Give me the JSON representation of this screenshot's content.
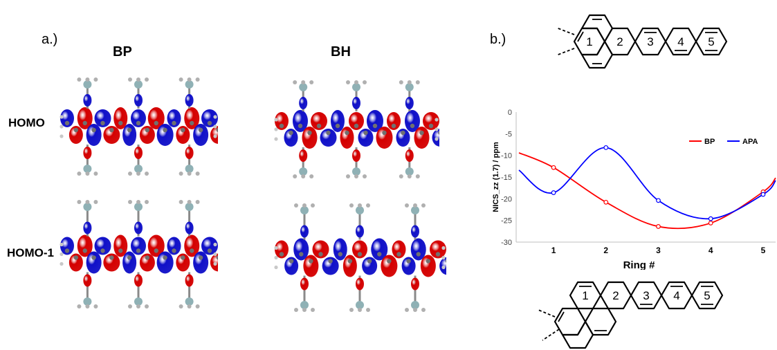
{
  "panel_a": {
    "label": "a.)",
    "columns": [
      "BP",
      "BH"
    ],
    "rows": [
      "HOMO",
      "HOMO-1"
    ]
  },
  "panel_b": {
    "label": "b.)",
    "top_structure_rings": [
      "1",
      "2",
      "3",
      "4",
      "5"
    ],
    "bottom_structure_rings": [
      "1",
      "2",
      "3",
      "4",
      "5"
    ]
  },
  "colors": {
    "orbital_positive": "#d40000",
    "orbital_negative": "#1010c8",
    "bp_series": "#ff0000",
    "apa_series": "#0000ff"
  },
  "chart_data": {
    "type": "line",
    "xlabel": "Ring #",
    "ylabel": "NICS_zz (1.7) / ppm",
    "categories": [
      "1",
      "2",
      "3",
      "4",
      "5"
    ],
    "ylim": [
      -30,
      0
    ],
    "yticks": [
      "0",
      "-5",
      "-10",
      "-15",
      "-20",
      "-25",
      "-30"
    ],
    "legend_position": "top-right",
    "smooth": true,
    "series": [
      {
        "name": "BP",
        "color": "#ff0000",
        "values": [
          -12.8,
          -20.8,
          -26.4,
          -25.6,
          -18.4
        ],
        "start": -9.4,
        "end": -15.2
      },
      {
        "name": "APA",
        "color": "#0000ff",
        "values": [
          -18.6,
          -8.2,
          -20.4,
          -24.6,
          -19.0
        ],
        "start": -13.4,
        "end": -15.8
      }
    ]
  }
}
